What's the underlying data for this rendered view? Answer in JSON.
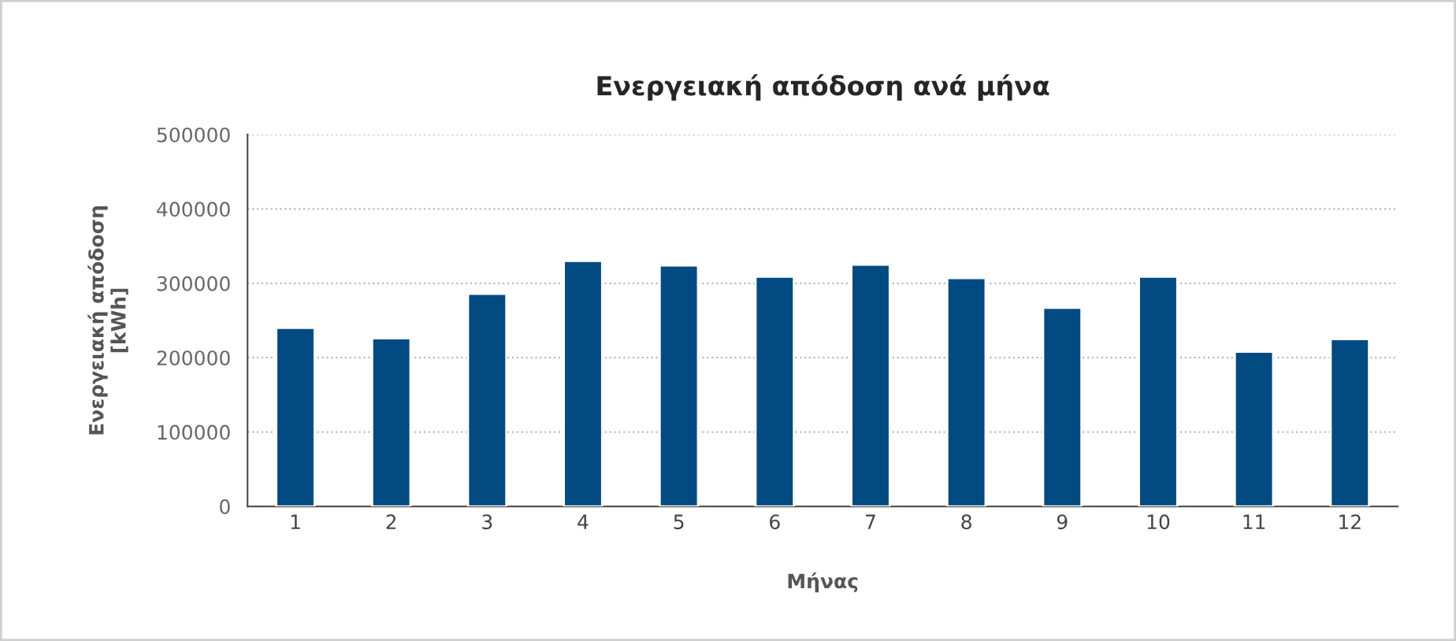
{
  "chart_data": {
    "type": "bar",
    "title": "Ενεργειακή απόδοση ανά μήνα",
    "xlabel": "Μήνας",
    "ylabel": "Ενεργειακή απόδοση\n[kWh]",
    "categories": [
      "1",
      "2",
      "3",
      "4",
      "5",
      "6",
      "7",
      "8",
      "9",
      "10",
      "11",
      "12"
    ],
    "values": [
      240000,
      226000,
      286000,
      330000,
      324000,
      309000,
      325000,
      307000,
      267000,
      309000,
      208000,
      225000
    ],
    "color": "#024a82",
    "ylim": [
      0,
      500000
    ],
    "yticks": [
      0,
      100000,
      200000,
      300000,
      400000,
      500000
    ],
    "grid": "y"
  }
}
